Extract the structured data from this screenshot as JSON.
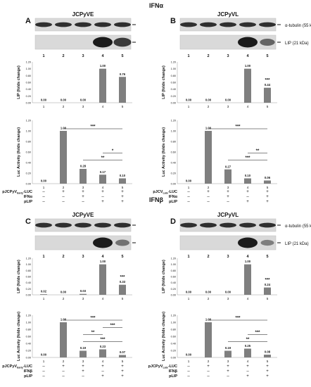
{
  "section_titles": [
    "IFNα",
    "IFNβ"
  ],
  "panels": [
    {
      "letter": "A",
      "title": "JCPyVE"
    },
    {
      "letter": "B",
      "title": "JCPyVL"
    },
    {
      "letter": "C",
      "title": "JCPyVE"
    },
    {
      "letter": "D",
      "title": "JCPyVL"
    }
  ],
  "blot_labels": {
    "tubulin": "α-tubulin (55 kDa)",
    "lip": "LIP (21 kDa)"
  },
  "lane_labels": [
    "1",
    "2",
    "3",
    "4",
    "5"
  ],
  "axis_labels": {
    "lip": "LIP (folds change)",
    "luc": "Luc Activity (folds change)"
  },
  "sign_plus": "+",
  "sign_minus": "–",
  "conditions": {
    "A": [
      {
        "label": "pJCPyVEarly-LUC",
        "base": "pJCPyV",
        "sub": "Early",
        "tail": "-LUC",
        "signs": [
          "–",
          "+",
          "+",
          "+",
          "+"
        ]
      },
      {
        "label": "IFNα",
        "signs": [
          "–",
          "–",
          "+",
          "–",
          "+"
        ]
      },
      {
        "label": "pLIP",
        "signs": [
          "–",
          "–",
          "–",
          "+",
          "+"
        ]
      }
    ],
    "B": [
      {
        "label": "pJCVLateLUC",
        "base": "pJCV",
        "sub": "Late",
        "tail": "-LUC",
        "signs": [
          "–",
          "+",
          "+",
          "+",
          "+"
        ]
      },
      {
        "label": "IFNα",
        "signs": [
          "–",
          "–",
          "+",
          "–",
          "+"
        ]
      },
      {
        "label": "pLIP",
        "signs": [
          "–",
          "–",
          "–",
          "+",
          "+"
        ]
      }
    ],
    "C": [
      {
        "label": "pJCPyVEarly-LUC",
        "base": "pJCPyV",
        "sub": "Early",
        "tail": "-LUC",
        "signs": [
          "–",
          "+",
          "+",
          "+",
          "+"
        ]
      },
      {
        "label": "IFNβ",
        "signs": [
          "–",
          "–",
          "+",
          "–",
          "+"
        ]
      },
      {
        "label": "pLIP",
        "signs": [
          "–",
          "–",
          "–",
          "+",
          "+"
        ]
      }
    ],
    "D": [
      {
        "label": "pJCPyVLate-LUC",
        "base": "pJCPyV",
        "sub": "Late",
        "tail": "-LUC",
        "signs": [
          "–",
          "+",
          "+",
          "+",
          "+"
        ]
      },
      {
        "label": "IFNβ",
        "signs": [
          "–",
          "–",
          "+",
          "–",
          "+"
        ]
      },
      {
        "label": "pLIP",
        "signs": [
          "–",
          "–",
          "–",
          "+",
          "+"
        ]
      }
    ]
  },
  "chart_data": [
    {
      "panel": "A",
      "type": "bar",
      "ylabel": "LIP (folds change)",
      "ylim": [
        0,
        1.2
      ],
      "yticks": [
        "0.00",
        "0.20",
        "0.40",
        "0.60",
        "0.80",
        "1.00",
        "1.20"
      ],
      "categories": [
        "1",
        "2",
        "3",
        "4",
        "5"
      ],
      "values": [
        0.0,
        0.0,
        0.0,
        1.0,
        0.76
      ],
      "value_labels": [
        "0.00",
        "0.00",
        "0.00",
        "1.00",
        "0.76"
      ],
      "annotations": []
    },
    {
      "panel": "A",
      "type": "bar",
      "ylabel": "Luc Activity (folds change)",
      "ylim": [
        0,
        1.2
      ],
      "yticks": [
        "0.00",
        "0.20",
        "0.40",
        "0.60",
        "0.80",
        "1.00",
        "1.20"
      ],
      "categories": [
        "1",
        "2",
        "3",
        "4",
        "5"
      ],
      "values": [
        0.0,
        1.0,
        0.28,
        0.17,
        0.1
      ],
      "value_labels": [
        "0.00",
        "1.00",
        "0.28",
        "0.17",
        "0.10"
      ],
      "annotations": [
        {
          "from": "2",
          "to": "5",
          "text": "***"
        },
        {
          "from": "3",
          "to": "5",
          "text": "**"
        },
        {
          "from": "4",
          "to": "5",
          "text": "*"
        }
      ]
    },
    {
      "panel": "B",
      "type": "bar",
      "ylabel": "LIP (folds change)",
      "ylim": [
        0,
        1.2
      ],
      "yticks": [
        "0.00",
        "0.20",
        "0.40",
        "0.60",
        "0.80",
        "1.00",
        "1.20"
      ],
      "categories": [
        "1",
        "2",
        "3",
        "4",
        "5"
      ],
      "values": [
        0.0,
        0.0,
        0.0,
        1.0,
        0.44
      ],
      "value_labels": [
        "0.00",
        "0.00",
        "0.00",
        "1.00",
        "0.44"
      ],
      "annotations": [
        {
          "over": "5",
          "text": "***"
        }
      ]
    },
    {
      "panel": "B",
      "type": "bar",
      "ylabel": "Luc Activity (folds change)",
      "ylim": [
        0,
        1.2
      ],
      "yticks": [
        "0.00",
        "0.20",
        "0.40",
        "0.60",
        "0.80",
        "1.00",
        "1.20"
      ],
      "categories": [
        "1",
        "2",
        "3",
        "4",
        "5"
      ],
      "values": [
        0.0,
        1.0,
        0.27,
        0.1,
        0.06
      ],
      "value_labels": [
        "0.00",
        "1.00",
        "0.27",
        "0.10",
        "0.06"
      ],
      "annotations": [
        {
          "from": "2",
          "to": "5",
          "text": "***"
        },
        {
          "from": "3",
          "to": "5",
          "text": "***"
        },
        {
          "from": "4",
          "to": "5",
          "text": "**"
        }
      ]
    },
    {
      "panel": "C",
      "type": "bar",
      "ylabel": "LIP (folds change)",
      "ylim": [
        0,
        1.2
      ],
      "yticks": [
        "0.00",
        "0.20",
        "0.40",
        "0.60",
        "0.80",
        "1.00",
        "1.20"
      ],
      "categories": [
        "1",
        "2",
        "3",
        "4",
        "5"
      ],
      "values": [
        0.02,
        0.0,
        0.03,
        1.0,
        0.33
      ],
      "value_labels": [
        "0.02",
        "0.00",
        "0.03",
        "1.00",
        "0.33"
      ],
      "annotations": [
        {
          "over": "5",
          "text": "***"
        }
      ]
    },
    {
      "panel": "C",
      "type": "bar",
      "ylabel": "Luc Activity (folds change)",
      "ylim": [
        0,
        1.2
      ],
      "yticks": [
        "0.00",
        "0.20",
        "0.40",
        "0.60",
        "0.80",
        "1.00",
        "1.20"
      ],
      "categories": [
        "1",
        "2",
        "3",
        "4",
        "5"
      ],
      "values": [
        0.0,
        1.0,
        0.19,
        0.23,
        0.07
      ],
      "value_labels": [
        "0.00",
        "1.00",
        "0.19",
        "0.23",
        "0.07"
      ],
      "annotations": [
        {
          "from": "2",
          "to": "5",
          "text": "***"
        },
        {
          "from": "3",
          "to": "5",
          "text": "***"
        },
        {
          "from": "3",
          "to": "4",
          "text": "**"
        },
        {
          "from": "4",
          "to": "5",
          "text": "***"
        }
      ]
    },
    {
      "panel": "D",
      "type": "bar",
      "ylabel": "LIP (folds change)",
      "ylim": [
        0,
        1.2
      ],
      "yticks": [
        "0.00",
        "0.20",
        "0.40",
        "0.60",
        "0.80",
        "1.00",
        "1.20"
      ],
      "categories": [
        "1",
        "2",
        "3",
        "4",
        "5"
      ],
      "values": [
        0.0,
        0.0,
        0.0,
        1.0,
        0.24
      ],
      "value_labels": [
        "0.00",
        "0.00",
        "0.00",
        "1.00",
        "0.24"
      ],
      "annotations": [
        {
          "over": "5",
          "text": "***"
        }
      ]
    },
    {
      "panel": "D",
      "type": "bar",
      "ylabel": "Luc Activity (folds change)",
      "ylim": [
        0,
        1.2
      ],
      "yticks": [
        "0.00",
        "0.20",
        "0.40",
        "0.60",
        "0.80",
        "1.00",
        "1.20"
      ],
      "categories": [
        "1",
        "2",
        "3",
        "4",
        "5"
      ],
      "values": [
        0.0,
        1.0,
        0.19,
        0.25,
        0.08
      ],
      "value_labels": [
        "0.00",
        "1.00",
        "0.19",
        "0.25",
        "0.08"
      ],
      "annotations": [
        {
          "from": "2",
          "to": "5",
          "text": "***"
        },
        {
          "from": "3",
          "to": "5",
          "text": "**"
        },
        {
          "from": "4",
          "to": "5",
          "text": "***"
        }
      ]
    }
  ],
  "colors": {
    "bar": "#7f7f7f",
    "text": "#111111",
    "band": "#111111"
  }
}
